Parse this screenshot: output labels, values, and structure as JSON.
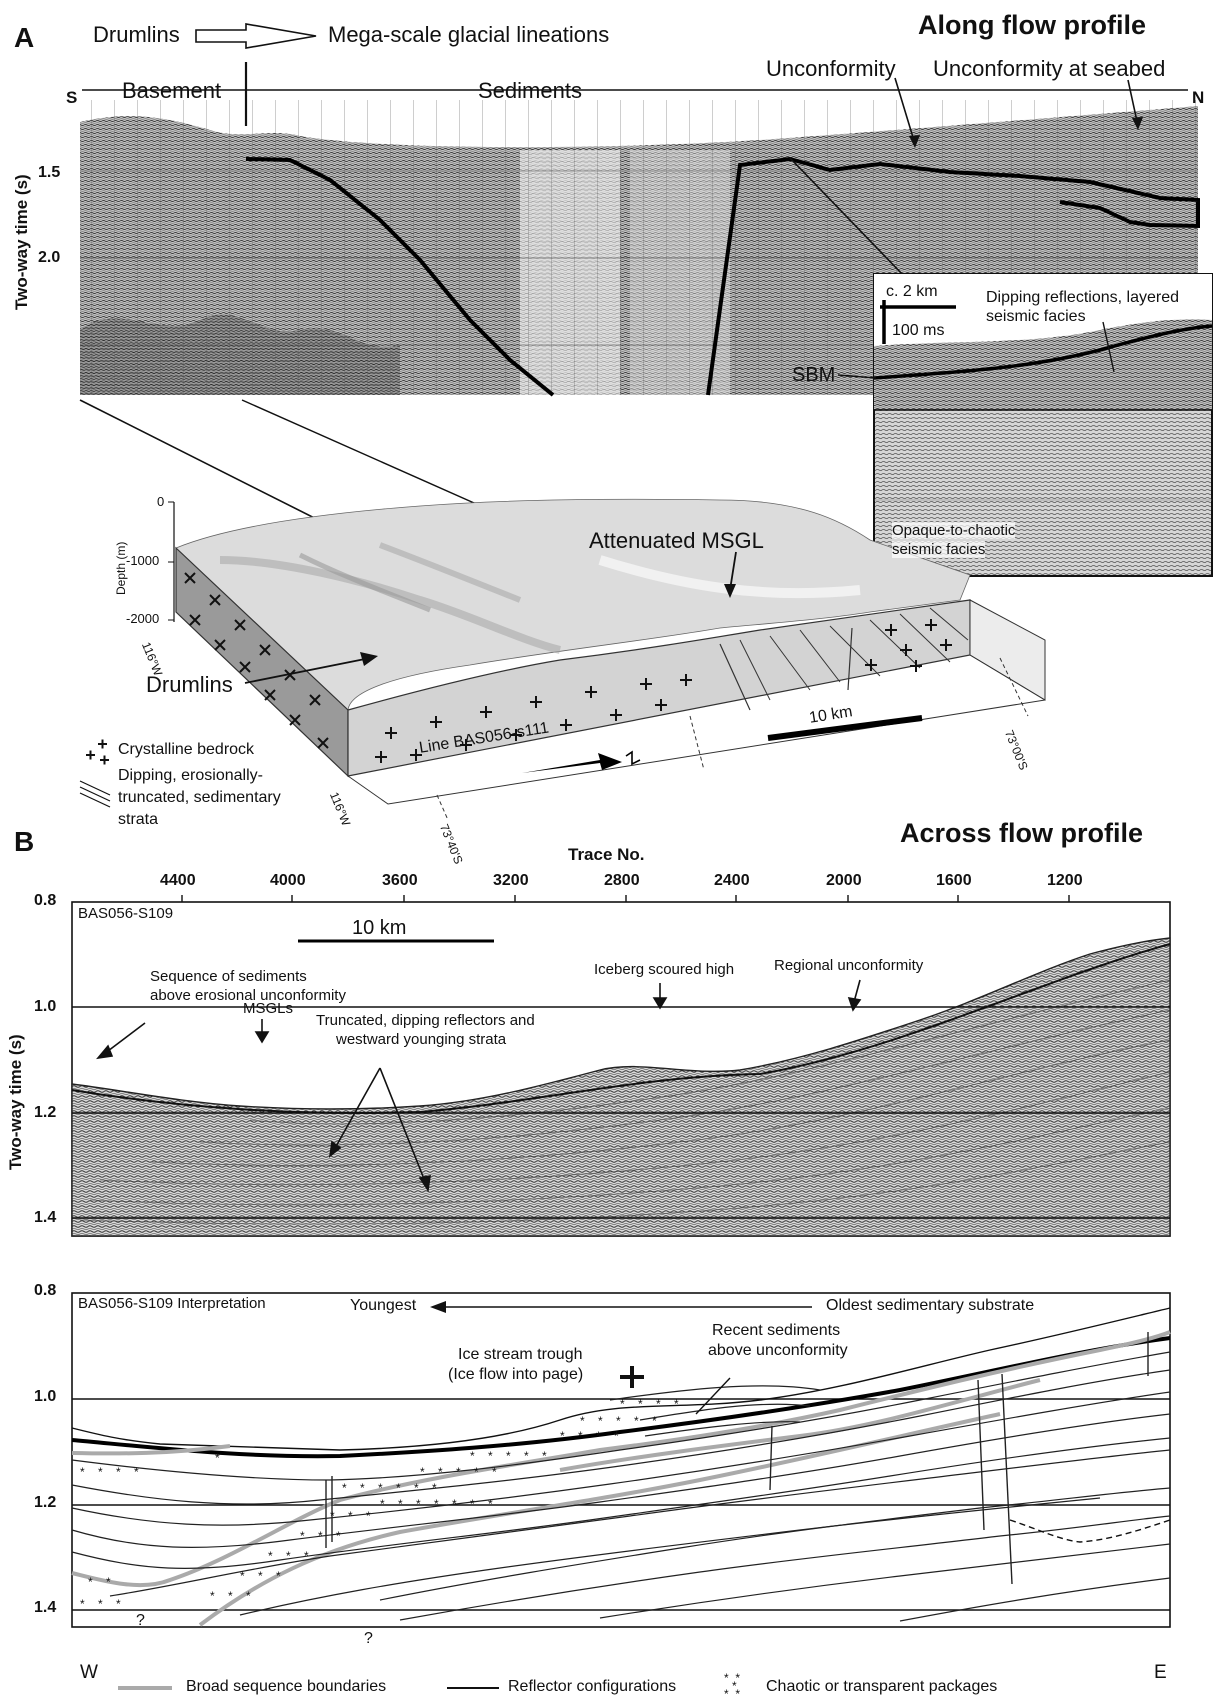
{
  "panel_a": {
    "letter": "A",
    "title": "Along flow profile",
    "top_left_label_1": "Drumlins",
    "top_left_label_2": "Mega-scale glacial lineations",
    "basement": "Basement",
    "sediments": "Sediments",
    "unconformity": "Unconformity",
    "unconformity_seabed": "Unconformity at seabed",
    "south": "S",
    "north": "N",
    "y_axis_label": "Two-way time (s)",
    "y_ticks": [
      "1.5",
      "2.0"
    ],
    "inset": {
      "scale_h": "c. 2 km",
      "scale_v": "100 ms",
      "sbm": "SBM",
      "dipping": "Dipping reflections, layered",
      "dipping2": "seismic facies",
      "opaque": "Opaque-to-chaotic",
      "opaque2": "seismic facies"
    },
    "block": {
      "depth_label": "Depth (m)",
      "depth_ticks": [
        "0",
        "-1000",
        "-2000"
      ],
      "attenuated": "Attenuated MSGL",
      "drumlins": "Drumlins",
      "line": "Line BAS056-s111",
      "scale": "10 km",
      "lon1": "116°W",
      "lon2": "116°W",
      "lat1": "73°40'S",
      "lat2": "73°00'S"
    },
    "legend": {
      "crystalline": "Crystalline bedrock",
      "dipping1": "Dipping, erosionally-",
      "dipping2": "truncated, sedimentary",
      "dipping3": "strata"
    }
  },
  "panel_b": {
    "letter": "B",
    "title": "Across flow profile",
    "trace_title": "Trace No.",
    "trace_ticks": [
      "4400",
      "4000",
      "3600",
      "3200",
      "2800",
      "2400",
      "2000",
      "1600",
      "1200"
    ],
    "y_axis_label": "Two-way time (s)",
    "y_ticks_top": [
      "0.8",
      "1.0",
      "1.2",
      "1.4"
    ],
    "y_ticks_bottom": [
      "0.8",
      "1.0",
      "1.2",
      "1.4"
    ],
    "line_name": "BAS056-S109",
    "scale": "10 km",
    "seq1": "Sequence of sediments",
    "seq2": "above erosional unconformity",
    "msgls": "MSGLs",
    "trunc1": "Truncated, dipping reflectors and",
    "trunc2": "westward younging strata",
    "iceberg": "Iceberg scoured high",
    "regional": "Regional unconformity",
    "interp_name": "BAS056-S109 Interpretation",
    "youngest": "Youngest",
    "oldest": "Oldest sedimentary substrate",
    "trough1": "Ice stream trough",
    "trough2": "(Ice flow into page)",
    "recent1": "Recent sediments",
    "recent2": "above unconformity",
    "q1": "?",
    "q2": "?",
    "west": "W",
    "east": "E",
    "legend_grey": "Broad sequence boundaries",
    "legend_black": "Reflector configurations",
    "legend_star": "Chaotic or transparent packages"
  }
}
